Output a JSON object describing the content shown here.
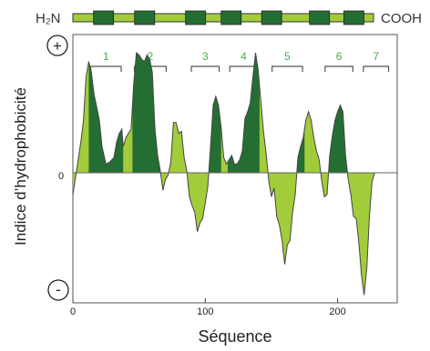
{
  "chart_data": {
    "type": "area",
    "ylabel": "Indice d’hydrophobicité",
    "xlabel": "Séquence",
    "x_ticks": [
      "0",
      "100",
      "200"
    ],
    "y_zero_label": "0",
    "y_plus_label": "+",
    "y_minus_label": "-",
    "xlim": [
      0,
      245
    ],
    "ylim": [
      -3,
      3
    ],
    "protein": {
      "n_label": "H₂N",
      "c_label": "COOH",
      "segment_count": 7
    },
    "segments": [
      {
        "label": "1",
        "start": 12,
        "end": 38
      },
      {
        "label": "2",
        "start": 45,
        "end": 72
      },
      {
        "label": "3",
        "start": 88,
        "end": 112
      },
      {
        "label": "4",
        "start": 117,
        "end": 141
      },
      {
        "label": "5",
        "start": 149,
        "end": 175
      },
      {
        "label": "6",
        "start": 189,
        "end": 213
      },
      {
        "label": "7",
        "start": 218,
        "end": 240
      }
    ],
    "profile": [
      [
        0,
        -0.5
      ],
      [
        3,
        0.1
      ],
      [
        6,
        0.7
      ],
      [
        8,
        1.2
      ],
      [
        10,
        2.2
      ],
      [
        12,
        2.55
      ],
      [
        14,
        2.3
      ],
      [
        16,
        1.8
      ],
      [
        18,
        1.5
      ],
      [
        20,
        1.2
      ],
      [
        22,
        0.6
      ],
      [
        25,
        0.2
      ],
      [
        28,
        0.25
      ],
      [
        31,
        0.35
      ],
      [
        33,
        0.7
      ],
      [
        35,
        0.9
      ],
      [
        37,
        1.0
      ],
      [
        38,
        0.6
      ],
      [
        40,
        0.8
      ],
      [
        42,
        0.9
      ],
      [
        44,
        1.0
      ],
      [
        46,
        2.05
      ],
      [
        48,
        2.75
      ],
      [
        50,
        2.7
      ],
      [
        52,
        2.6
      ],
      [
        54,
        2.55
      ],
      [
        56,
        2.7
      ],
      [
        58,
        2.6
      ],
      [
        60,
        2.3
      ],
      [
        62,
        1.0
      ],
      [
        64,
        0.4
      ],
      [
        66,
        0.05
      ],
      [
        68,
        -0.4
      ],
      [
        70,
        -0.15
      ],
      [
        72,
        -0.05
      ],
      [
        74,
        0.25
      ],
      [
        76,
        1.15
      ],
      [
        78,
        1.15
      ],
      [
        80,
        0.9
      ],
      [
        82,
        0.95
      ],
      [
        84,
        0.35
      ],
      [
        86,
        0.05
      ],
      [
        88,
        -0.55
      ],
      [
        90,
        -0.75
      ],
      [
        92,
        -0.9
      ],
      [
        94,
        -1.35
      ],
      [
        96,
        -1.15
      ],
      [
        98,
        -1.05
      ],
      [
        100,
        -0.7
      ],
      [
        102,
        -0.3
      ],
      [
        104,
        0.6
      ],
      [
        106,
        1.55
      ],
      [
        108,
        1.75
      ],
      [
        110,
        1.55
      ],
      [
        112,
        1.05
      ],
      [
        114,
        0.35
      ],
      [
        116,
        0.2
      ],
      [
        118,
        0.3
      ],
      [
        120,
        0.4
      ],
      [
        122,
        0.2
      ],
      [
        124,
        0.2
      ],
      [
        126,
        0.3
      ],
      [
        128,
        0.5
      ],
      [
        130,
        1.25
      ],
      [
        132,
        1.4
      ],
      [
        134,
        1.6
      ],
      [
        136,
        2.2
      ],
      [
        138,
        2.75
      ],
      [
        140,
        2.35
      ],
      [
        142,
        1.65
      ],
      [
        144,
        0.95
      ],
      [
        146,
        0.45
      ],
      [
        148,
        -0.2
      ],
      [
        150,
        -0.55
      ],
      [
        152,
        -0.35
      ],
      [
        154,
        -1.0
      ],
      [
        156,
        -1.2
      ],
      [
        158,
        -1.55
      ],
      [
        160,
        -2.1
      ],
      [
        162,
        -1.65
      ],
      [
        164,
        -1.55
      ],
      [
        166,
        -0.9
      ],
      [
        168,
        -0.5
      ],
      [
        170,
        0.35
      ],
      [
        172,
        0.6
      ],
      [
        174,
        0.8
      ],
      [
        176,
        1.2
      ],
      [
        178,
        1.4
      ],
      [
        180,
        1.2
      ],
      [
        182,
        0.8
      ],
      [
        184,
        0.5
      ],
      [
        186,
        0.3
      ],
      [
        188,
        -0.2
      ],
      [
        190,
        -0.55
      ],
      [
        192,
        -0.5
      ],
      [
        194,
        0.4
      ],
      [
        196,
        0.85
      ],
      [
        198,
        1.2
      ],
      [
        200,
        1.4
      ],
      [
        202,
        1.55
      ],
      [
        204,
        1.4
      ],
      [
        206,
        0.4
      ],
      [
        208,
        -0.15
      ],
      [
        210,
        -0.5
      ],
      [
        212,
        -1.0
      ],
      [
        214,
        -1.05
      ],
      [
        216,
        -1.6
      ],
      [
        218,
        -2.35
      ],
      [
        220,
        -2.8
      ],
      [
        222,
        -2.2
      ],
      [
        224,
        -1.0
      ],
      [
        226,
        -0.2
      ],
      [
        228,
        0.0
      ]
    ],
    "colors": {
      "dark_fill": "#256e33",
      "light_fill": "#a2cc3a",
      "outline": "#444444",
      "bracket": "#555555",
      "label_green": "#48b04a",
      "axis": "#444444"
    }
  }
}
